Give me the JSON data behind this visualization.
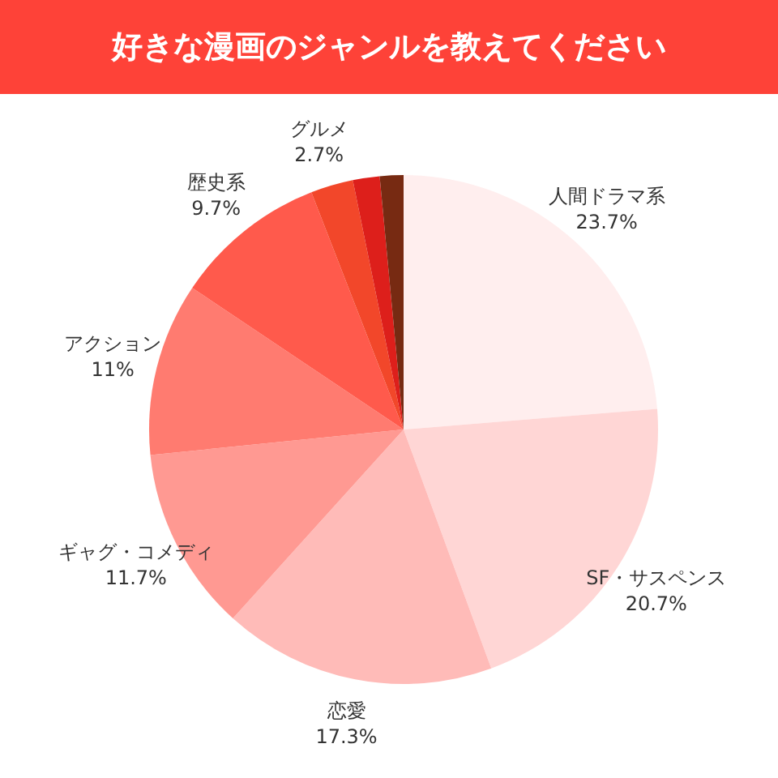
{
  "chart_data": {
    "type": "pie",
    "title": "好きな漫画のジャンルを教えてください",
    "categories": [
      "人間ドラマ系",
      "SF・サスペンス",
      "恋愛",
      "ギャグ・コメディ",
      "アクション",
      "歴史系",
      "グルメ",
      null,
      null
    ],
    "values": [
      23.7,
      20.7,
      17.3,
      11.7,
      11,
      9.7,
      2.7,
      1.7,
      1.5
    ],
    "value_labels": [
      "23.7%",
      "20.7%",
      "17.3%",
      "11.7%",
      "11%",
      "9.7%",
      "2.7%",
      null,
      null
    ],
    "colors": [
      "#ffeeee",
      "#ffd6d5",
      "#ffbbb8",
      "#ff9992",
      "#ff7b70",
      "#ff5a4c",
      "#f2472a",
      "#dd1f1b",
      "#772a12"
    ]
  }
}
